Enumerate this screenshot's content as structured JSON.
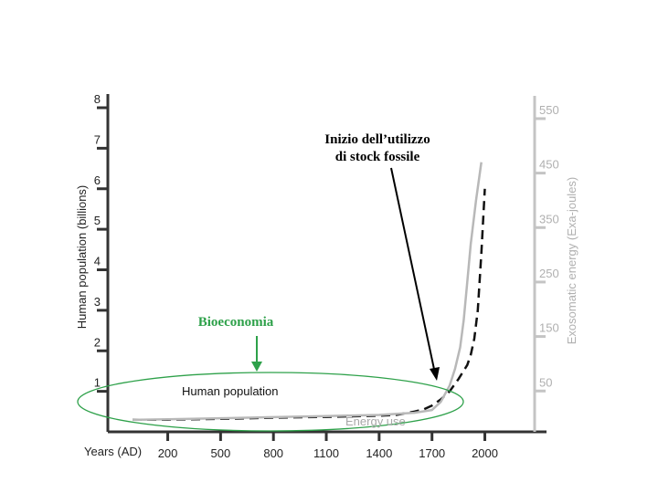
{
  "chart_data": {
    "type": "line",
    "xlabel": "Years (AD)",
    "x_ticks": [
      200,
      500,
      800,
      1100,
      1400,
      1700,
      2000
    ],
    "xlim": [
      -140,
      2350
    ],
    "left_axis": {
      "label": "Human population (billions)",
      "ticks": [
        1,
        2,
        3,
        4,
        5,
        6,
        7,
        8
      ],
      "ylim": [
        0,
        8
      ]
    },
    "right_axis": {
      "label": "Exosomatic energy (Exa-joules)",
      "ticks": [
        50,
        150,
        250,
        350,
        450,
        550
      ],
      "ylim": [
        -25,
        570
      ]
    },
    "series": [
      {
        "name": "Human population",
        "axis": "left",
        "style": "dashed",
        "color": "#111111",
        "x": [
          0,
          200,
          500,
          800,
          1100,
          1400,
          1500,
          1600,
          1650,
          1700,
          1750,
          1800,
          1850,
          1900,
          1920,
          1940,
          1960,
          1980,
          2000
        ],
        "y": [
          0.3,
          0.3,
          0.32,
          0.35,
          0.37,
          0.4,
          0.42,
          0.5,
          0.55,
          0.65,
          0.8,
          1.0,
          1.3,
          1.65,
          1.9,
          2.3,
          3.0,
          4.4,
          6.0
        ]
      },
      {
        "name": "Energy use",
        "axis": "right",
        "style": "solid",
        "color": "#b8b8b8",
        "x": [
          0,
          200,
          500,
          800,
          1100,
          1400,
          1600,
          1700,
          1750,
          1800,
          1830,
          1860,
          1880,
          1900,
          1920,
          1950,
          1980
        ],
        "y": [
          -3,
          -2,
          0,
          2,
          4,
          6,
          10,
          15,
          30,
          60,
          90,
          130,
          180,
          250,
          320,
          400,
          470
        ]
      }
    ],
    "annotations": [
      {
        "text": "Human population",
        "color": "#111111"
      },
      {
        "text": "Energy use",
        "color": "#a8a8a8"
      },
      {
        "text_lines": [
          "Inizio dell’utilizzo",
          "di stock fossile"
        ],
        "color": "#000000"
      },
      {
        "text": "Bioeconomia",
        "color": "#2ea14a"
      }
    ],
    "grid": false
  }
}
